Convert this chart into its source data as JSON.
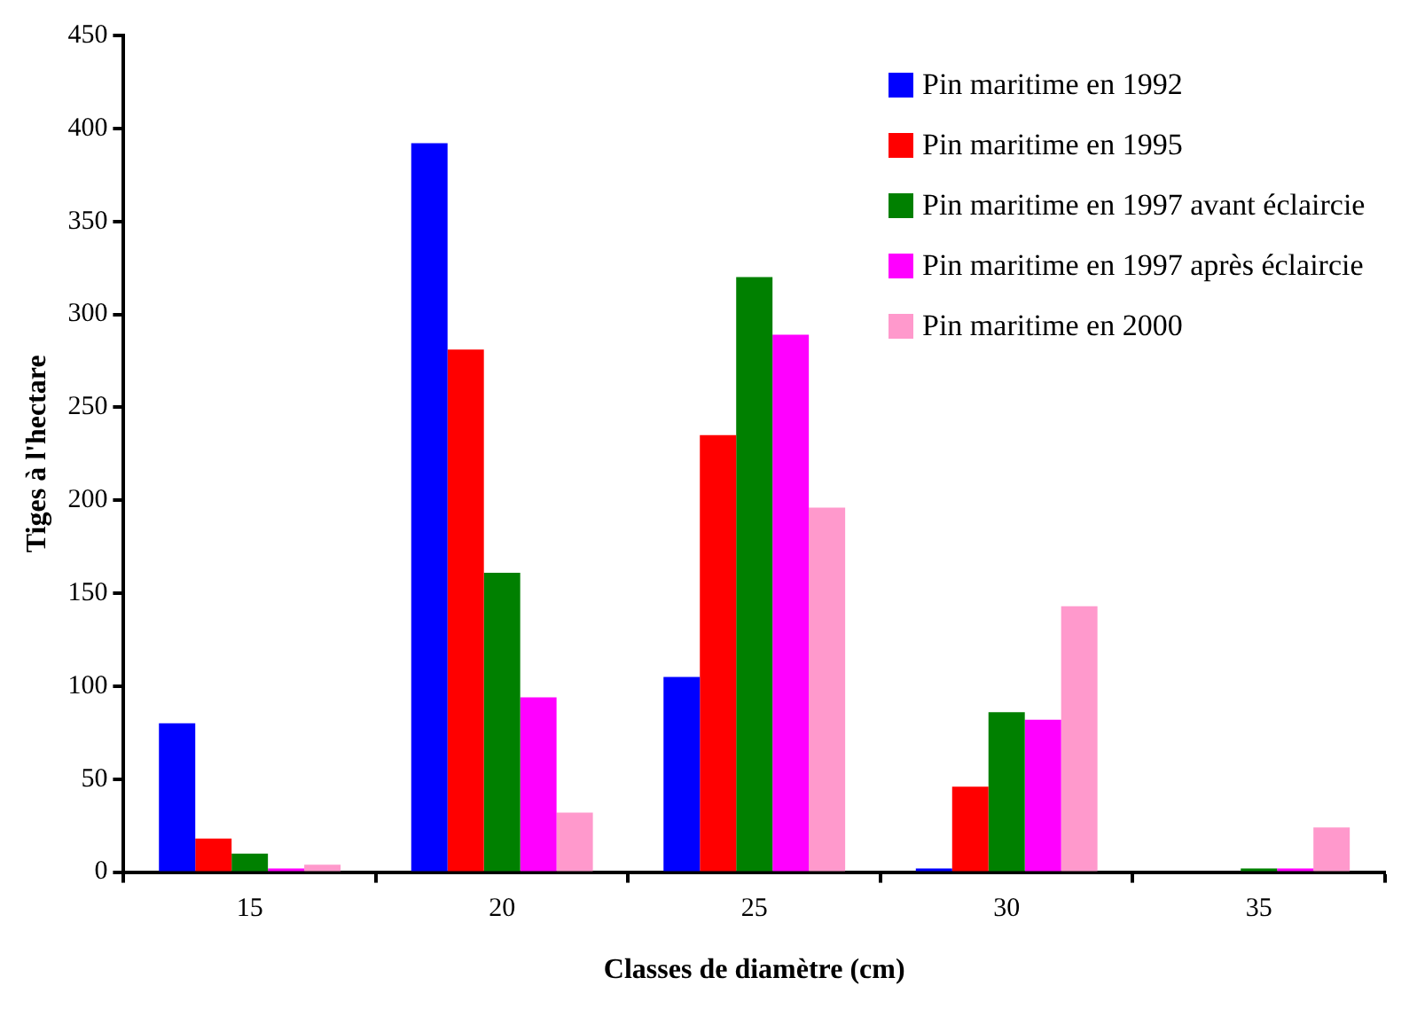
{
  "chart_data": {
    "type": "bar",
    "xlabel": "Classes de diamètre (cm)",
    "ylabel": "Tiges à l'hectare",
    "categories": [
      "15",
      "20",
      "25",
      "30",
      "35"
    ],
    "series": [
      {
        "name": "Pin maritime en 1992",
        "color": "#0000ff",
        "values": [
          80,
          392,
          105,
          2,
          0
        ]
      },
      {
        "name": "Pin maritime en 1995",
        "color": "#ff0000",
        "values": [
          18,
          281,
          235,
          46,
          0
        ]
      },
      {
        "name": "Pin maritime en 1997 avant éclaircie",
        "color": "#008000",
        "values": [
          10,
          161,
          320,
          86,
          2
        ]
      },
      {
        "name": "Pin maritime en 1997 après éclaircie",
        "color": "#ff00ff",
        "values": [
          2,
          94,
          289,
          82,
          2
        ]
      },
      {
        "name": "Pin maritime en 2000",
        "color": "#ff99cc",
        "values": [
          4,
          32,
          196,
          143,
          24
        ]
      }
    ],
    "ylim": [
      0,
      450
    ],
    "yticks": [
      0,
      50,
      100,
      150,
      200,
      250,
      300,
      350,
      400,
      450
    ],
    "grid": false,
    "legend": "top right"
  }
}
